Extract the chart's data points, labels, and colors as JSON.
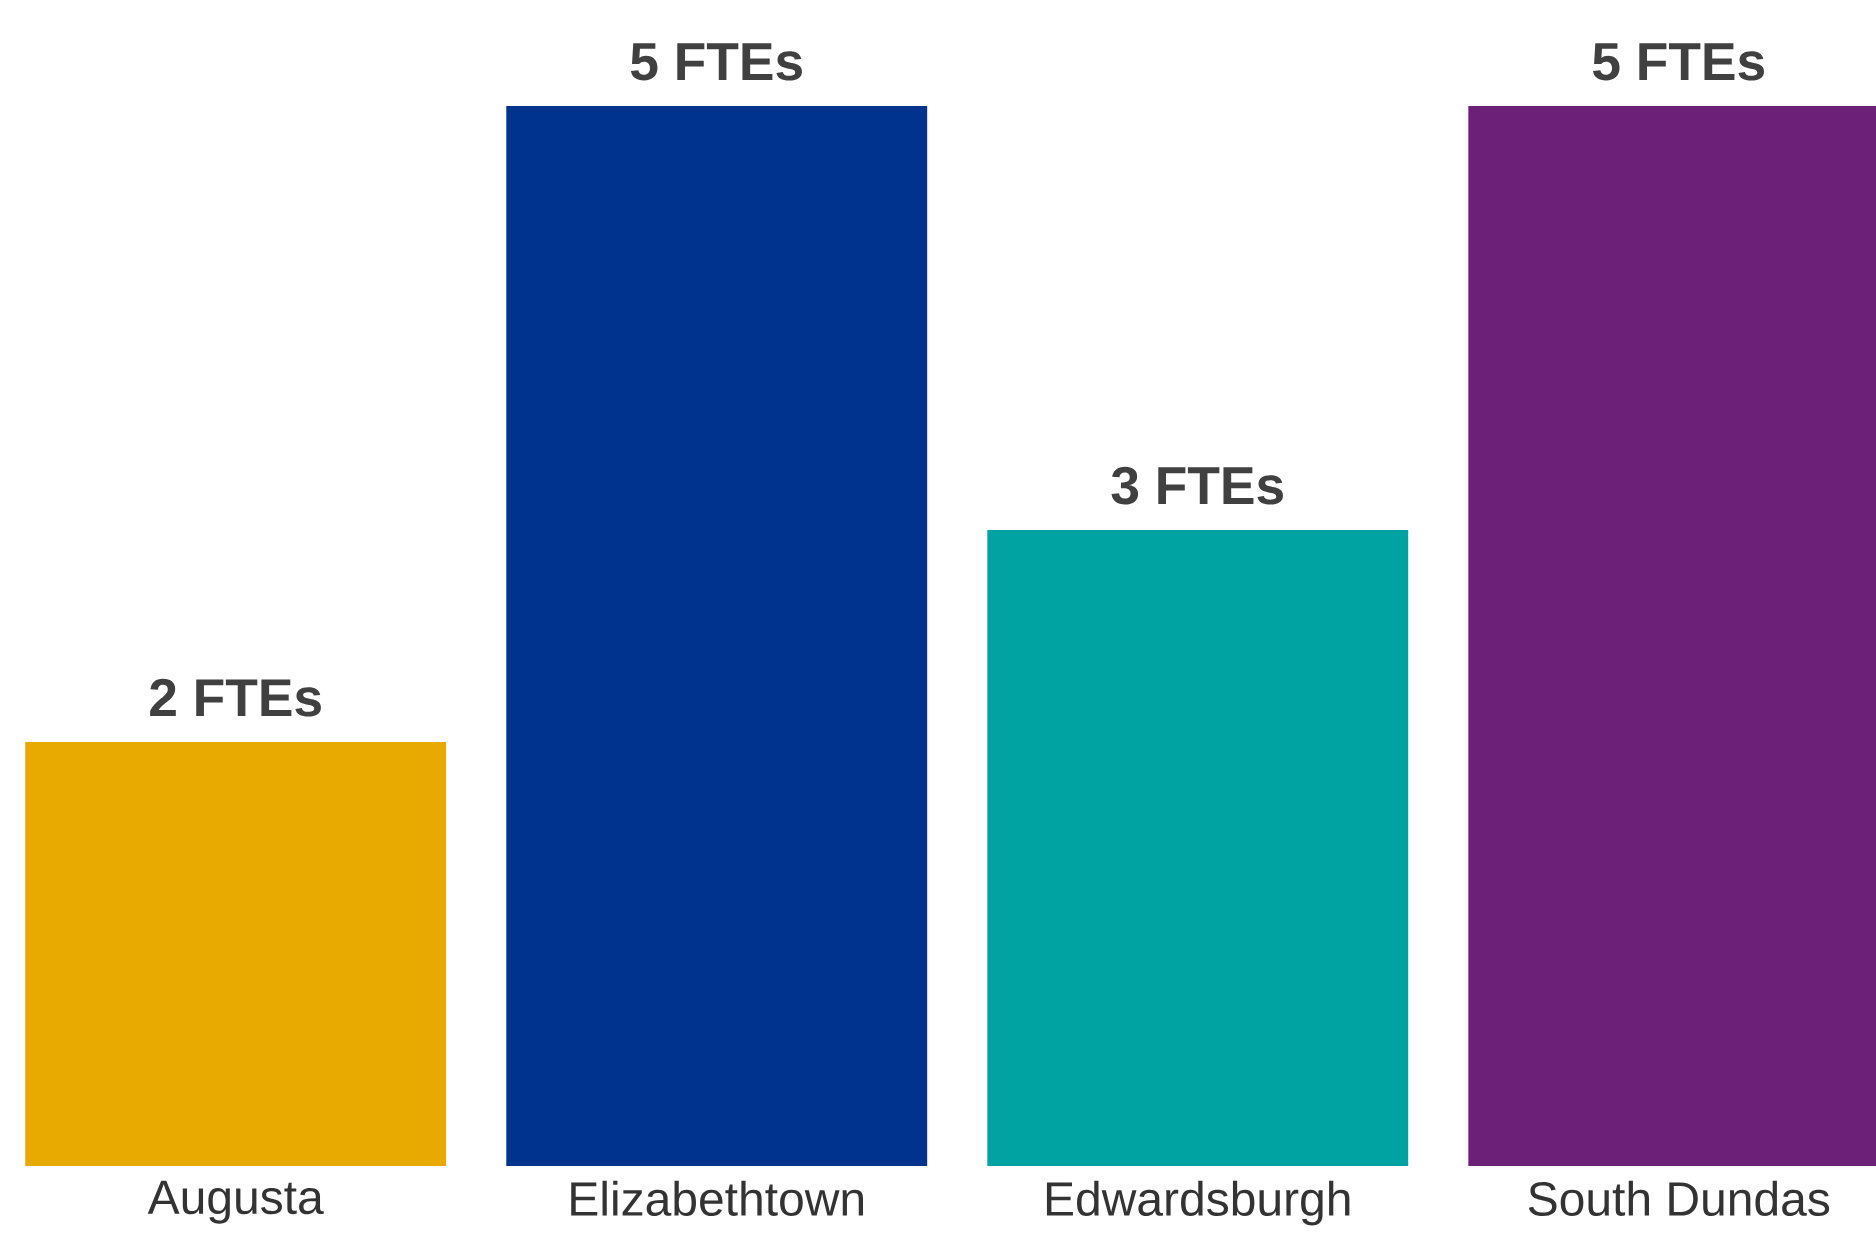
{
  "chart_data": {
    "type": "bar",
    "categories": [
      "Augusta",
      "Elizabethtown",
      "Edwardsburgh",
      "South Dundas"
    ],
    "values": [
      2,
      5,
      3,
      5
    ],
    "colors": [
      "#e8a900",
      "#00338d",
      "#00a3a1",
      "#6d2077"
    ],
    "value_labels": [
      "2 FTEs",
      "5 FTEs",
      "3 FTEs",
      "5 FTEs"
    ]
  }
}
